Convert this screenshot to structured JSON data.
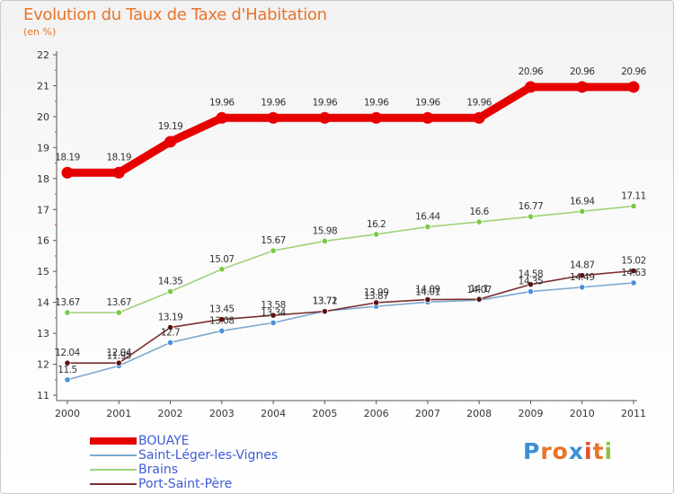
{
  "header": {
    "title": "Evolution du Taux de Taxe d'Habitation",
    "subtitle": "(en %)"
  },
  "logo": {
    "text": "Proxiti",
    "letters": [
      {
        "ch": "P",
        "color": "#3b8fd6"
      },
      {
        "ch": "r",
        "color": "#e8742a"
      },
      {
        "ch": "o",
        "color": "#e8742a"
      },
      {
        "ch": "x",
        "color": "#3b8fd6"
      },
      {
        "ch": "i",
        "color": "#e04e2b"
      },
      {
        "ch": "t",
        "color": "#e8742a"
      },
      {
        "ch": "i",
        "color": "#8ac43f"
      }
    ]
  },
  "chart_data": {
    "type": "line",
    "title": "Evolution du Taux de Taxe d'Habitation",
    "subtitle": "(en %)",
    "xlabel": "",
    "ylabel": "",
    "x": [
      "2000",
      "2001",
      "2002",
      "2003",
      "2004",
      "2005",
      "2006",
      "2007",
      "2008",
      "2009",
      "2010",
      "2011"
    ],
    "ylim": [
      11,
      22
    ],
    "yticks": [
      "11",
      "12",
      "13",
      "14",
      "15",
      "16",
      "17",
      "18",
      "19",
      "20",
      "21",
      "22"
    ],
    "grid": false,
    "legend_position": "bottom-left",
    "series": [
      {
        "name": "BOUAYE",
        "color": "#e60000",
        "marker_color": "#e60000",
        "line_width": "thick",
        "values": [
          18.19,
          18.19,
          19.19,
          19.96,
          19.96,
          19.96,
          19.96,
          19.96,
          19.96,
          20.96,
          20.96,
          20.96
        ],
        "labels": [
          "18.19",
          "18.19",
          "19.19",
          "19.96",
          "19.96",
          "19.96",
          "19.96",
          "19.96",
          "19.96",
          "20.96",
          "20.96",
          "20.96"
        ]
      },
      {
        "name": "Saint-Léger-les-Vignes",
        "color": "#7da7cf",
        "marker_color": "#4a90d9",
        "line_width": "thin",
        "values": [
          11.5,
          11.95,
          12.7,
          13.08,
          13.34,
          13.72,
          13.87,
          14.01,
          14.07,
          14.35,
          14.49,
          14.63
        ],
        "labels": [
          "11.5",
          "11.95",
          "12.7",
          "13.08",
          "13.34",
          "13.72",
          "13.87",
          "14.01",
          "14.07",
          "14.35",
          "14.49",
          "14.63"
        ]
      },
      {
        "name": "Brains",
        "color": "#9ed27a",
        "marker_color": "#7ac943",
        "line_width": "thin",
        "values": [
          13.67,
          13.67,
          14.35,
          15.07,
          15.67,
          15.98,
          16.2,
          16.44,
          16.6,
          16.77,
          16.94,
          17.11
        ],
        "labels": [
          "13.67",
          "13.67",
          "14.35",
          "15.07",
          "15.67",
          "15.98",
          "16.2",
          "16.44",
          "16.6",
          "16.77",
          "16.94",
          "17.11"
        ]
      },
      {
        "name": "Port-Saint-Père",
        "color": "#7a2e2e",
        "marker_color": "#5c1010",
        "line_width": "thin",
        "values": [
          12.04,
          12.04,
          13.19,
          13.45,
          13.58,
          13.71,
          13.99,
          14.09,
          14.1,
          14.58,
          14.87,
          15.02
        ],
        "labels": [
          "12.04",
          "12.04",
          "13.19",
          "13.45",
          "13.58",
          "13.71",
          "13.99",
          "14.09",
          "14.1",
          "14.58",
          "14.87",
          "15.02"
        ]
      }
    ]
  }
}
